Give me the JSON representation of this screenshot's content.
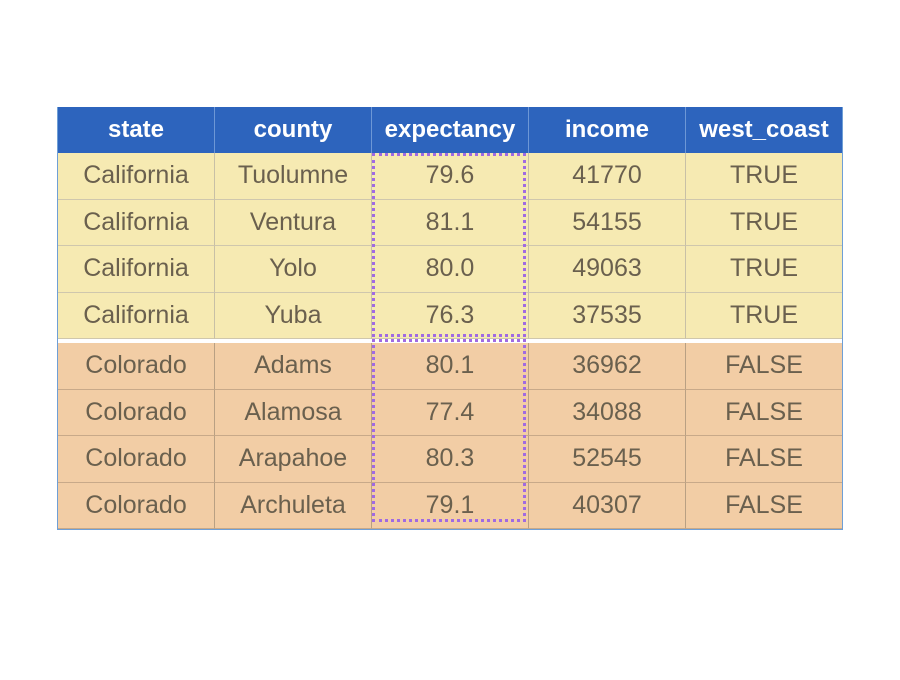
{
  "table": {
    "columns": [
      "state",
      "county",
      "expectancy",
      "income",
      "west_coast"
    ],
    "groups": [
      {
        "name": "california",
        "rows": [
          [
            "California",
            "Tuolumne",
            "79.6",
            "41770",
            "TRUE"
          ],
          [
            "California",
            "Ventura",
            "81.1",
            "54155",
            "TRUE"
          ],
          [
            "California",
            "Yolo",
            "80.0",
            "49063",
            "TRUE"
          ],
          [
            "California",
            "Yuba",
            "76.3",
            "37535",
            "TRUE"
          ]
        ]
      },
      {
        "name": "colorado",
        "rows": [
          [
            "Colorado",
            "Adams",
            "80.1",
            "36962",
            "FALSE"
          ],
          [
            "Colorado",
            "Alamosa",
            "77.4",
            "34088",
            "FALSE"
          ],
          [
            "Colorado",
            "Arapahoe",
            "80.3",
            "52545",
            "FALSE"
          ],
          [
            "Colorado",
            "Archuleta",
            "79.1",
            "40307",
            "FALSE"
          ]
        ]
      }
    ],
    "highlighted_column": "expectancy"
  },
  "colors": {
    "header_bg": "#2d64bd",
    "california_bg": "#f6eab2",
    "colorado_bg": "#f2cda5",
    "highlight_border": "#a06ae2",
    "cell_text": "#6a604e"
  }
}
